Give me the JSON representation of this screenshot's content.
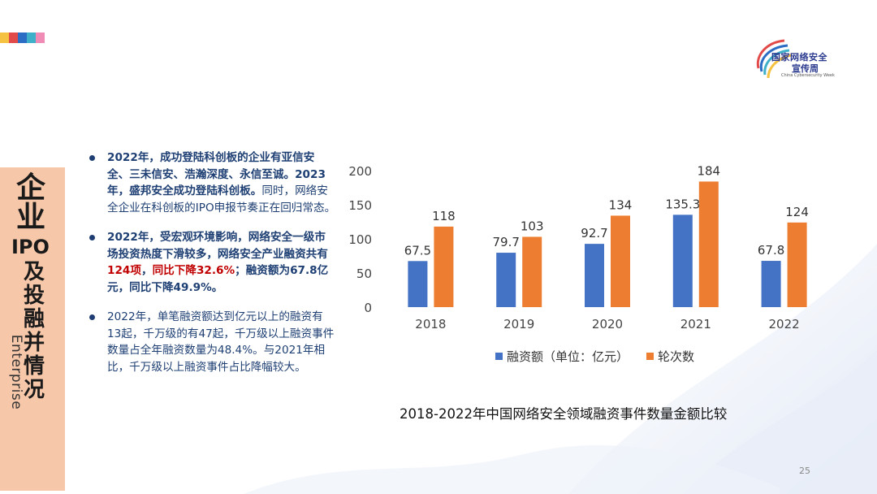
{
  "top_strip_colors": [
    "#f5c242",
    "#e24a4a",
    "#2b6cc4",
    "#3fb0c9",
    "#f08bb6"
  ],
  "colors": {
    "bar_series_1": "#4472c4",
    "bar_series_2": "#ed7d31",
    "side_panel": "#f6c7a8",
    "text_dark": "#1e3f73",
    "highlight": "#c00000"
  },
  "logo": {
    "line1": "国家网络安全",
    "line2": "宣传周",
    "line3": "China Cybersecurity Week"
  },
  "side": {
    "title_top": "企业",
    "title_ipo": "IPO",
    "title_rest": [
      "及",
      "投",
      "融",
      "并",
      "情",
      "况"
    ],
    "title_en": "Enterprise"
  },
  "bullets": [
    {
      "text": "2022年，成功登陆科创板的企业有亚信安全、三未信安、浩瀚深度、永信至诚。2023年，盛邦安全成功登陆科创板。",
      "tail": "同时，网络安全企业在科创板的IPO申报节奏正在回归常态。"
    },
    {
      "pre": "2022年，受宏观环境影响，网络安全一级市场投资热度下滑较多，网络安全产业融资共有",
      "hl1": "124项",
      "mid": "，",
      "hl2": "同比下降32.6%",
      "post": "；融资额为67.8亿元，同比下降49.9%。"
    },
    {
      "text": "2022年，单笔融资额达到亿元以上的融资有13起，千万级的有47起，千万级以上融资事件数量占全年融资数量为48.4%。与2021年相比，千万级以上融资事件占比降幅较大。"
    }
  ],
  "chart_data": {
    "type": "bar",
    "categories": [
      "2018",
      "2019",
      "2020",
      "2021",
      "2022"
    ],
    "series": [
      {
        "name": "融资额（单位：亿元）",
        "values": [
          67.5,
          79.7,
          92.7,
          135.3,
          67.8
        ]
      },
      {
        "name": "轮次数",
        "values": [
          118,
          103,
          134,
          184,
          124
        ]
      }
    ],
    "ylim": [
      0,
      200
    ],
    "yticks": [
      0,
      50,
      100,
      150,
      200
    ],
    "legend": "bottom",
    "grid": false,
    "caption": "2018-2022年中国网络安全领域融资事件数量金额比较"
  },
  "page_number": "25"
}
